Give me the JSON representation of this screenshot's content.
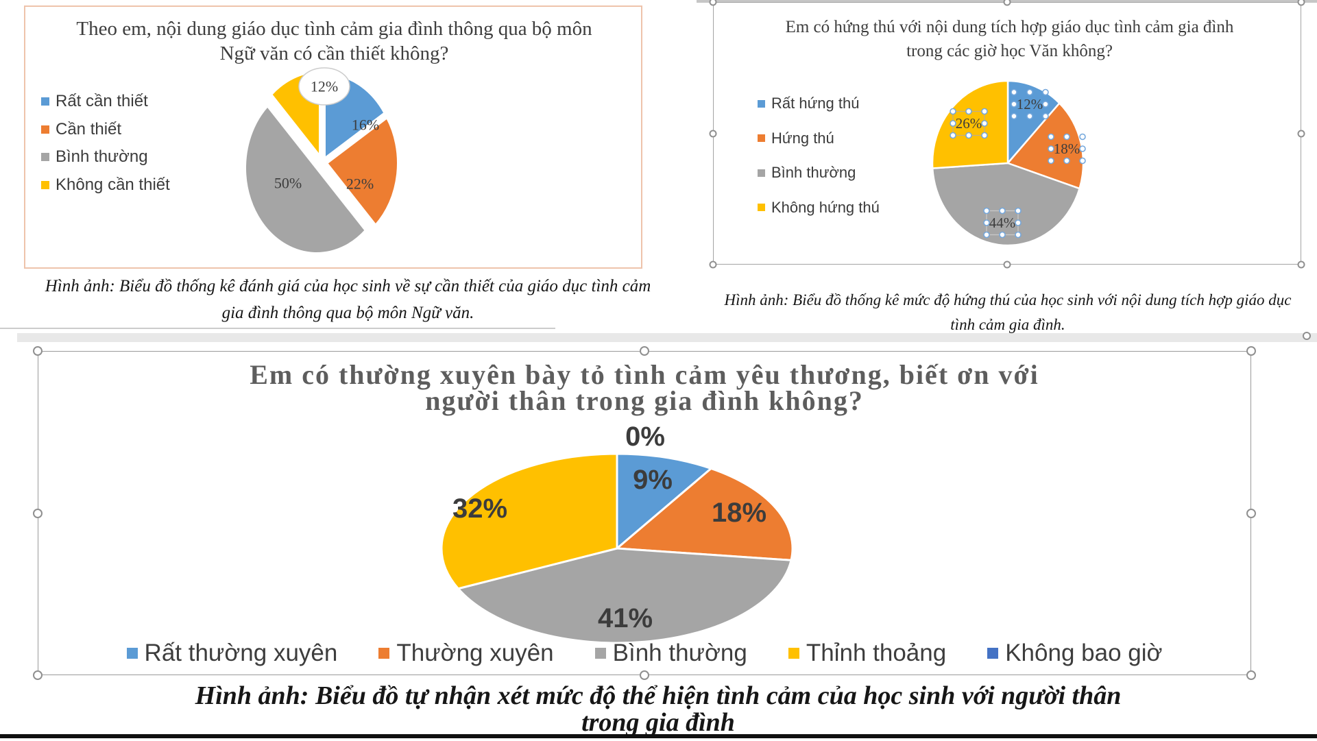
{
  "palette": {
    "blue": "#5B9BD5",
    "orange": "#ED7D31",
    "gray": "#A5A5A5",
    "yellow": "#FFC000",
    "dark_blue": "#4472C4",
    "label_text": "#3c3c3c",
    "handle_border": "#8f8f8f",
    "dot_border": "#74a7dc"
  },
  "chart_data": [
    {
      "type": "pie",
      "title": "Theo em, nội dung giáo dục tình cảm gia đình thông qua bộ môn Ngữ văn có cần thiết không?",
      "title_lines": [
        "Theo em, nội dung giáo dục tình cảm gia đình thông qua bộ môn",
        "Ngữ văn có cần thiết không?"
      ],
      "labels": [
        "Rất cần thiết",
        "Cần thiết",
        "Bình thường",
        "Không cần thiết"
      ],
      "values": [
        16,
        22,
        50,
        12
      ],
      "colors": [
        "blue",
        "orange",
        "gray",
        "yellow"
      ],
      "data_labels": [
        "16%",
        "22%",
        "50%",
        "12%"
      ],
      "legend_position": "left",
      "caption_lines": [
        "Hình ảnh: Biểu đồ thống kê đánh giá của học sinh về sự cần thiết của giáo dục tình cảm",
        "gia đình thông qua bộ môn Ngữ văn."
      ]
    },
    {
      "type": "pie",
      "title": "Em có hứng thú với nội dung tích hợp giáo dục tình cảm gia đình trong các giờ học Văn không?",
      "title_lines": [
        "Em có hứng thú với nội dung tích hợp giáo dục tình cảm gia đình",
        "trong các giờ học Văn không?"
      ],
      "labels": [
        "Rất hứng thú",
        "Hứng thú",
        "Bình thường",
        "Không hứng thú"
      ],
      "values": [
        12,
        18,
        44,
        26
      ],
      "colors": [
        "blue",
        "orange",
        "gray",
        "yellow"
      ],
      "data_labels": [
        "12%",
        "18%",
        "44%",
        "26%"
      ],
      "legend_position": "left",
      "caption_lines": [
        "Hình ảnh: Biểu đồ thống kê mức độ hứng thú của học sinh với nội dung tích hợp giáo dục",
        "tình cảm gia đình."
      ]
    },
    {
      "type": "pie",
      "title": "Em có thường xuyên bày tỏ tình cảm yêu thương, biết ơn với người thân trong gia đình không?",
      "title_lines": [
        "Em có thường xuyên bày tỏ tình cảm yêu thương, biết ơn với",
        "người thân trong gia đình không?"
      ],
      "labels": [
        "Rất thường xuyên",
        "Thường xuyên",
        "Bình thường",
        "Thỉnh thoảng",
        "Không bao giờ"
      ],
      "values": [
        9,
        18,
        41,
        32,
        0
      ],
      "colors": [
        "blue",
        "orange",
        "gray",
        "yellow",
        "dark_blue"
      ],
      "data_labels": [
        "9%",
        "18%",
        "41%",
        "32%",
        "0%"
      ],
      "legend_position": "bottom",
      "caption_lines": [
        "Hình ảnh: Biểu đồ tự nhận xét mức độ thể hiện tình cảm của học sinh với người thân",
        "trong gia đình"
      ]
    }
  ]
}
